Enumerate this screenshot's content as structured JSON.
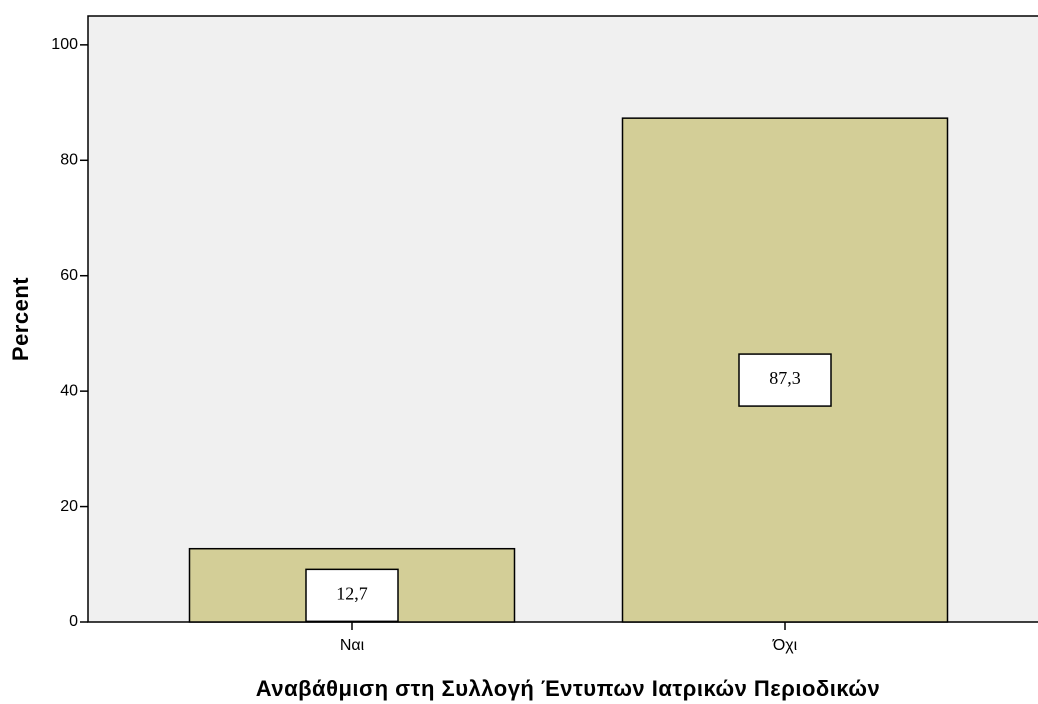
{
  "chart_data": {
    "type": "bar",
    "x_label": "Αναβάθμιση στη Συλλογή Έντυπων Ιατρικών Περιοδικών",
    "y_label": "Percent",
    "categories": [
      "Ναι",
      "Όχι"
    ],
    "values": [
      12.7,
      87.3
    ],
    "value_labels": [
      "12,7",
      "87,3"
    ],
    "color": "#d3ce97",
    "ylim": [
      0,
      105
    ],
    "yticks": [
      0,
      20,
      40,
      60,
      80,
      100
    ],
    "grid": false
  }
}
